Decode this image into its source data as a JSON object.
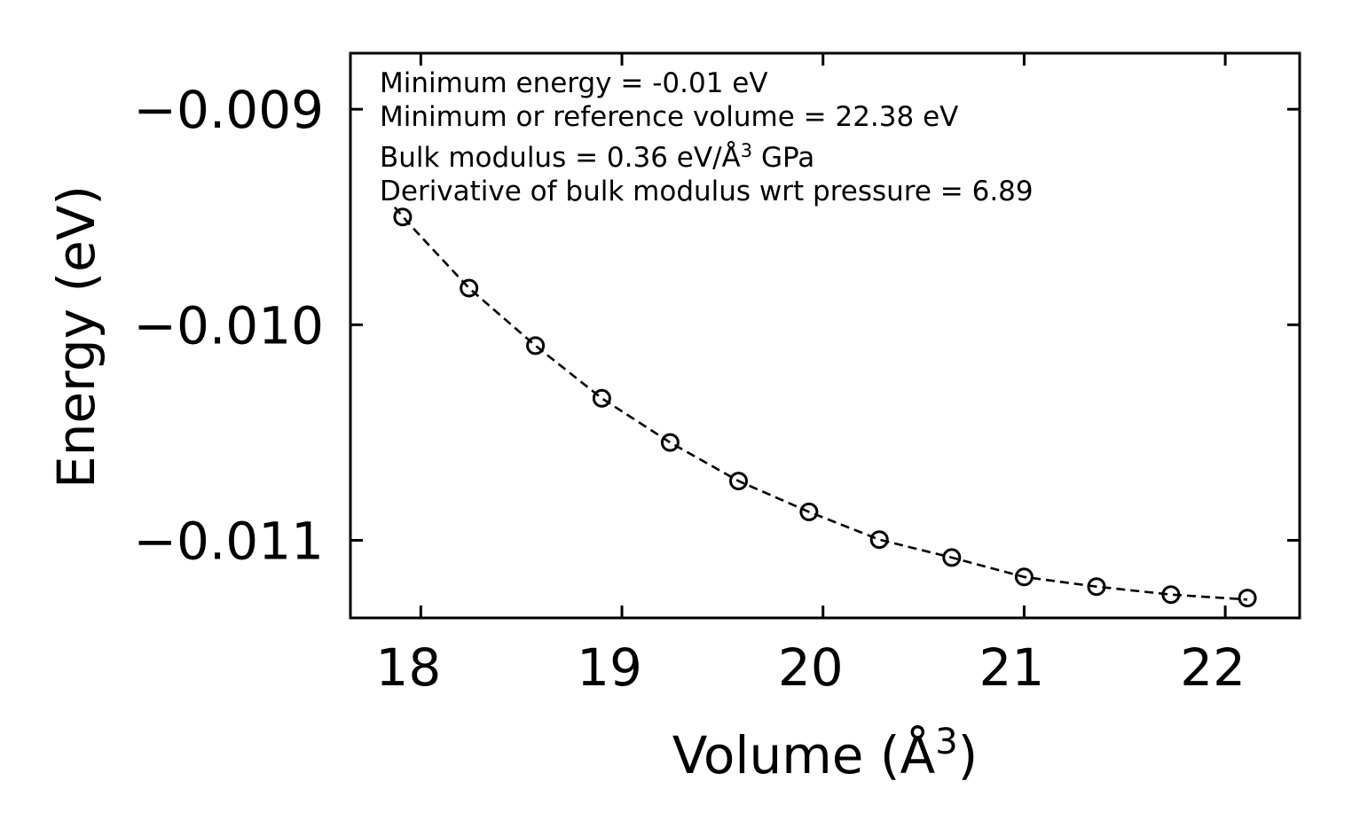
{
  "chart_data": {
    "type": "scatter",
    "title": "",
    "xlabel": "Volume (Å",
    "xlabel_sup": "3",
    "xlabel_end": ")",
    "ylabel": "Energy (eV)",
    "xlim": [
      17.65,
      22.37
    ],
    "ylim": [
      -0.01136,
      -0.00874
    ],
    "xticks": [
      18,
      19,
      20,
      21,
      22
    ],
    "xtick_labels": [
      "18",
      "19",
      "20",
      "21",
      "22"
    ],
    "yticks": [
      -0.009,
      -0.01,
      -0.011
    ],
    "ytick_labels": [
      "−0.009",
      "−0.010",
      "−0.011"
    ],
    "series": [
      {
        "name": "data",
        "marker": "open-circle",
        "x": [
          17.91,
          18.24,
          18.57,
          18.9,
          19.24,
          19.58,
          19.93,
          20.28,
          20.64,
          21.0,
          21.36,
          21.73,
          22.11
        ],
        "y": [
          -0.0095,
          -0.00983,
          -0.010097,
          -0.010341,
          -0.010546,
          -0.010725,
          -0.010868,
          -0.010997,
          -0.01108,
          -0.01117,
          -0.011215,
          -0.011252,
          -0.011268
        ]
      },
      {
        "name": "fit",
        "line_style": "dashed",
        "x": [
          17.87,
          17.95,
          18.24,
          18.57,
          18.9,
          19.24,
          19.58,
          19.93,
          20.28,
          20.64,
          21.0,
          21.36,
          21.73,
          22.11
        ],
        "y": [
          -0.009455,
          -0.00954,
          -0.00983,
          -0.010097,
          -0.010341,
          -0.010546,
          -0.010725,
          -0.010868,
          -0.010997,
          -0.01108,
          -0.01117,
          -0.011215,
          -0.011252,
          -0.011275
        ]
      }
    ],
    "annotations": [
      "Minimum energy = -0.01 eV",
      "Minimum or reference volume = 22.38 eV",
      "Bulk modulus = 0.36 eV/Å",
      "Derivative of bulk modulus wrt pressure = 6.89"
    ],
    "annotation_sup": "3",
    "annotation_suffix": " GPa",
    "grid": false,
    "legend": "none"
  }
}
